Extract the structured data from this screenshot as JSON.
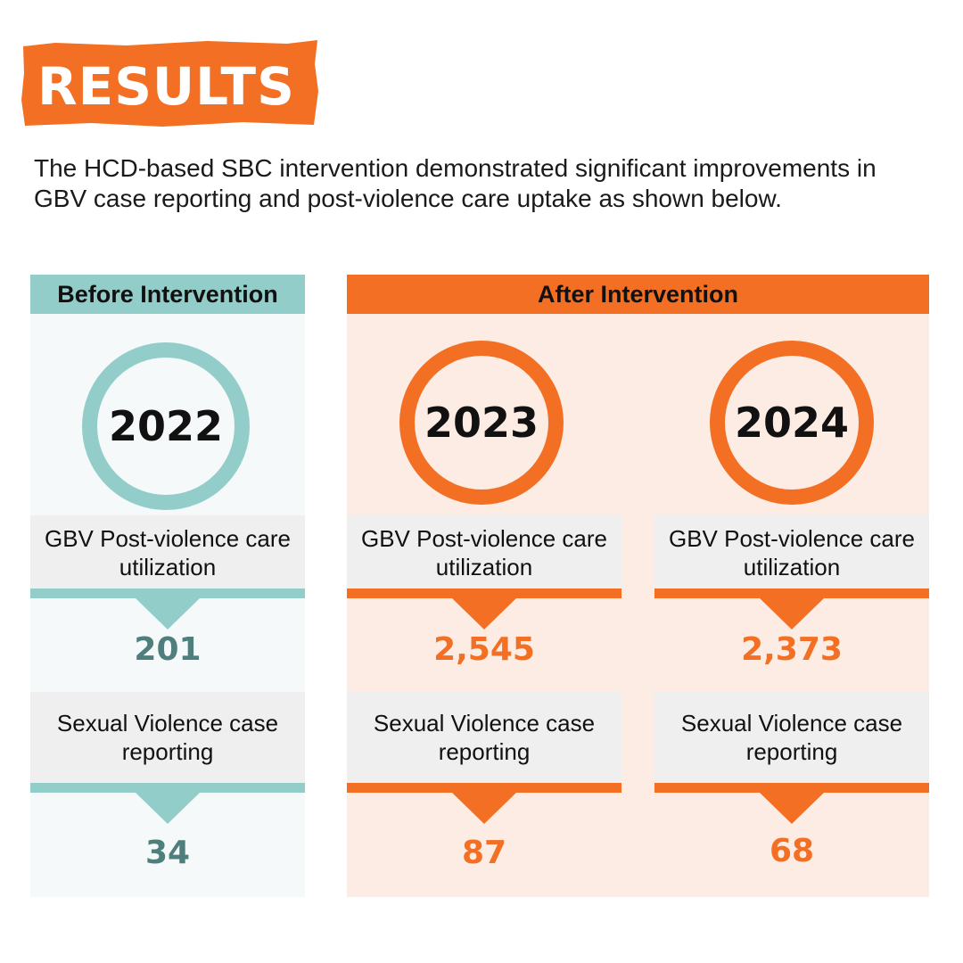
{
  "title": "RESULTS",
  "intro": "The HCD-based SBC intervention demonstrated significant improvements in GBV case reporting and post-violence care uptake as shown below.",
  "before": {
    "heading": "Before Intervention"
  },
  "after": {
    "heading": "After Intervention"
  },
  "colors": {
    "orange": "#f26f23",
    "teal": "#92cdc9",
    "teal_dark": "#4f7f7d",
    "gray": "#efefef"
  },
  "years": [
    {
      "year": "2022",
      "label1": "GBV Post-violence care utilization",
      "value1": "201",
      "label2": "Sexual Violence case reporting",
      "value2": "34"
    },
    {
      "year": "2023",
      "label1": "GBV Post-violence care utilization",
      "value1": "2,545",
      "label2": "Sexual Violence case reporting",
      "value2": "87"
    },
    {
      "year": "2024",
      "label1": "GBV Post-violence care utilization",
      "value1": "2,373",
      "label2": "Sexual Violence case reporting",
      "value2": "68"
    }
  ]
}
